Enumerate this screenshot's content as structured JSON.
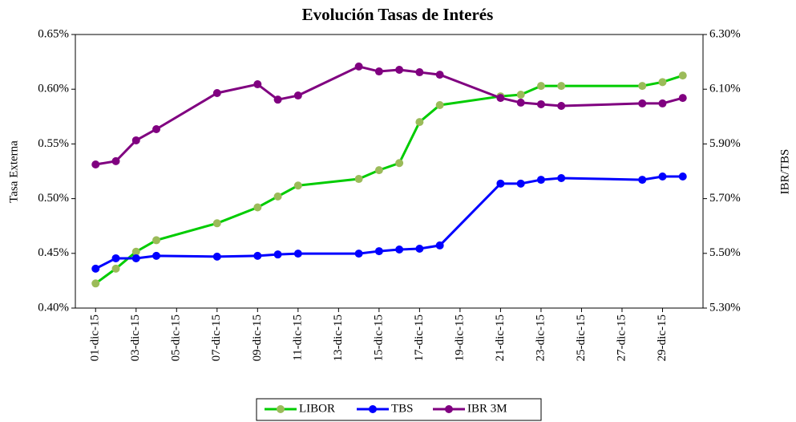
{
  "chart_data": {
    "type": "line",
    "title": "Evolución Tasas de Interés",
    "y_label": "Tasa Externa",
    "y2_label": "IBR/TBS",
    "x": [
      "2015-12-01",
      "2015-12-02",
      "2015-12-03",
      "2015-12-04",
      "2015-12-07",
      "2015-12-09",
      "2015-12-10",
      "2015-12-11",
      "2015-12-14",
      "2015-12-15",
      "2015-12-16",
      "2015-12-17",
      "2015-12-18",
      "2015-12-21",
      "2015-12-22",
      "2015-12-23",
      "2015-12-24",
      "2015-12-28",
      "2015-12-29",
      "2015-12-30"
    ],
    "xlim": [
      "2015-11-30",
      "2015-12-31"
    ],
    "xticks": [
      {
        "value": "2015-12-01",
        "label": "01-dic-15"
      },
      {
        "value": "2015-12-03",
        "label": "03-dic-15"
      },
      {
        "value": "2015-12-05",
        "label": "05-dic-15"
      },
      {
        "value": "2015-12-07",
        "label": "07-dic-15"
      },
      {
        "value": "2015-12-09",
        "label": "09-dic-15"
      },
      {
        "value": "2015-12-11",
        "label": "11-dic-15"
      },
      {
        "value": "2015-12-13",
        "label": "13-dic-15"
      },
      {
        "value": "2015-12-15",
        "label": "15-dic-15"
      },
      {
        "value": "2015-12-17",
        "label": "17-dic-15"
      },
      {
        "value": "2015-12-19",
        "label": "19-dic-15"
      },
      {
        "value": "2015-12-21",
        "label": "21-dic-15"
      },
      {
        "value": "2015-12-23",
        "label": "23-dic-15"
      },
      {
        "value": "2015-12-25",
        "label": "25-dic-15"
      },
      {
        "value": "2015-12-27",
        "label": "27-dic-15"
      },
      {
        "value": "2015-12-29",
        "label": "29-dic-15"
      }
    ],
    "ylim": [
      0.4,
      0.65
    ],
    "yticks": [
      {
        "value": 0.4,
        "label": "0.40%"
      },
      {
        "value": 0.45,
        "label": "0.45%"
      },
      {
        "value": 0.5,
        "label": "0.50%"
      },
      {
        "value": 0.55,
        "label": "0.55%"
      },
      {
        "value": 0.6,
        "label": "0.60%"
      },
      {
        "value": 0.65,
        "label": "0.65%"
      }
    ],
    "y2lim": [
      5.3,
      6.3
    ],
    "y2ticks": [
      {
        "value": 5.3,
        "label": "5.30%"
      },
      {
        "value": 5.5,
        "label": "5.50%"
      },
      {
        "value": 5.7,
        "label": "5.70%"
      },
      {
        "value": 5.9,
        "label": "5.90%"
      },
      {
        "value": 6.1,
        "label": "6.10%"
      },
      {
        "value": 6.3,
        "label": "6.30%"
      }
    ],
    "legend": "bottom",
    "series": [
      {
        "name": "LIBOR",
        "color": "#00cc00",
        "marker_color": "#9bbb59",
        "axis": "y",
        "values": [
          0.4225,
          0.436,
          0.4515,
          0.462,
          0.4775,
          0.492,
          0.502,
          0.512,
          0.518,
          0.526,
          0.5325,
          0.57,
          0.5855,
          0.5935,
          0.595,
          0.603,
          0.603,
          0.603,
          0.6065,
          0.6125
        ]
      },
      {
        "name": "TBS",
        "color": "#0000ff",
        "marker_color": "#0000ff",
        "axis": "y2",
        "values": [
          5.444,
          5.482,
          5.482,
          5.491,
          5.488,
          5.491,
          5.496,
          5.499,
          5.499,
          5.508,
          5.514,
          5.517,
          5.529,
          5.755,
          5.755,
          5.769,
          5.775,
          5.769,
          5.781,
          5.781
        ]
      },
      {
        "name": "IBR 3M",
        "color": "#800080",
        "marker_color": "#800080",
        "axis": "y2",
        "values": [
          5.825,
          5.837,
          5.913,
          5.954,
          6.086,
          6.118,
          6.062,
          6.077,
          6.183,
          6.165,
          6.171,
          6.162,
          6.153,
          6.068,
          6.051,
          6.045,
          6.039,
          6.048,
          6.048,
          6.068
        ]
      }
    ]
  }
}
